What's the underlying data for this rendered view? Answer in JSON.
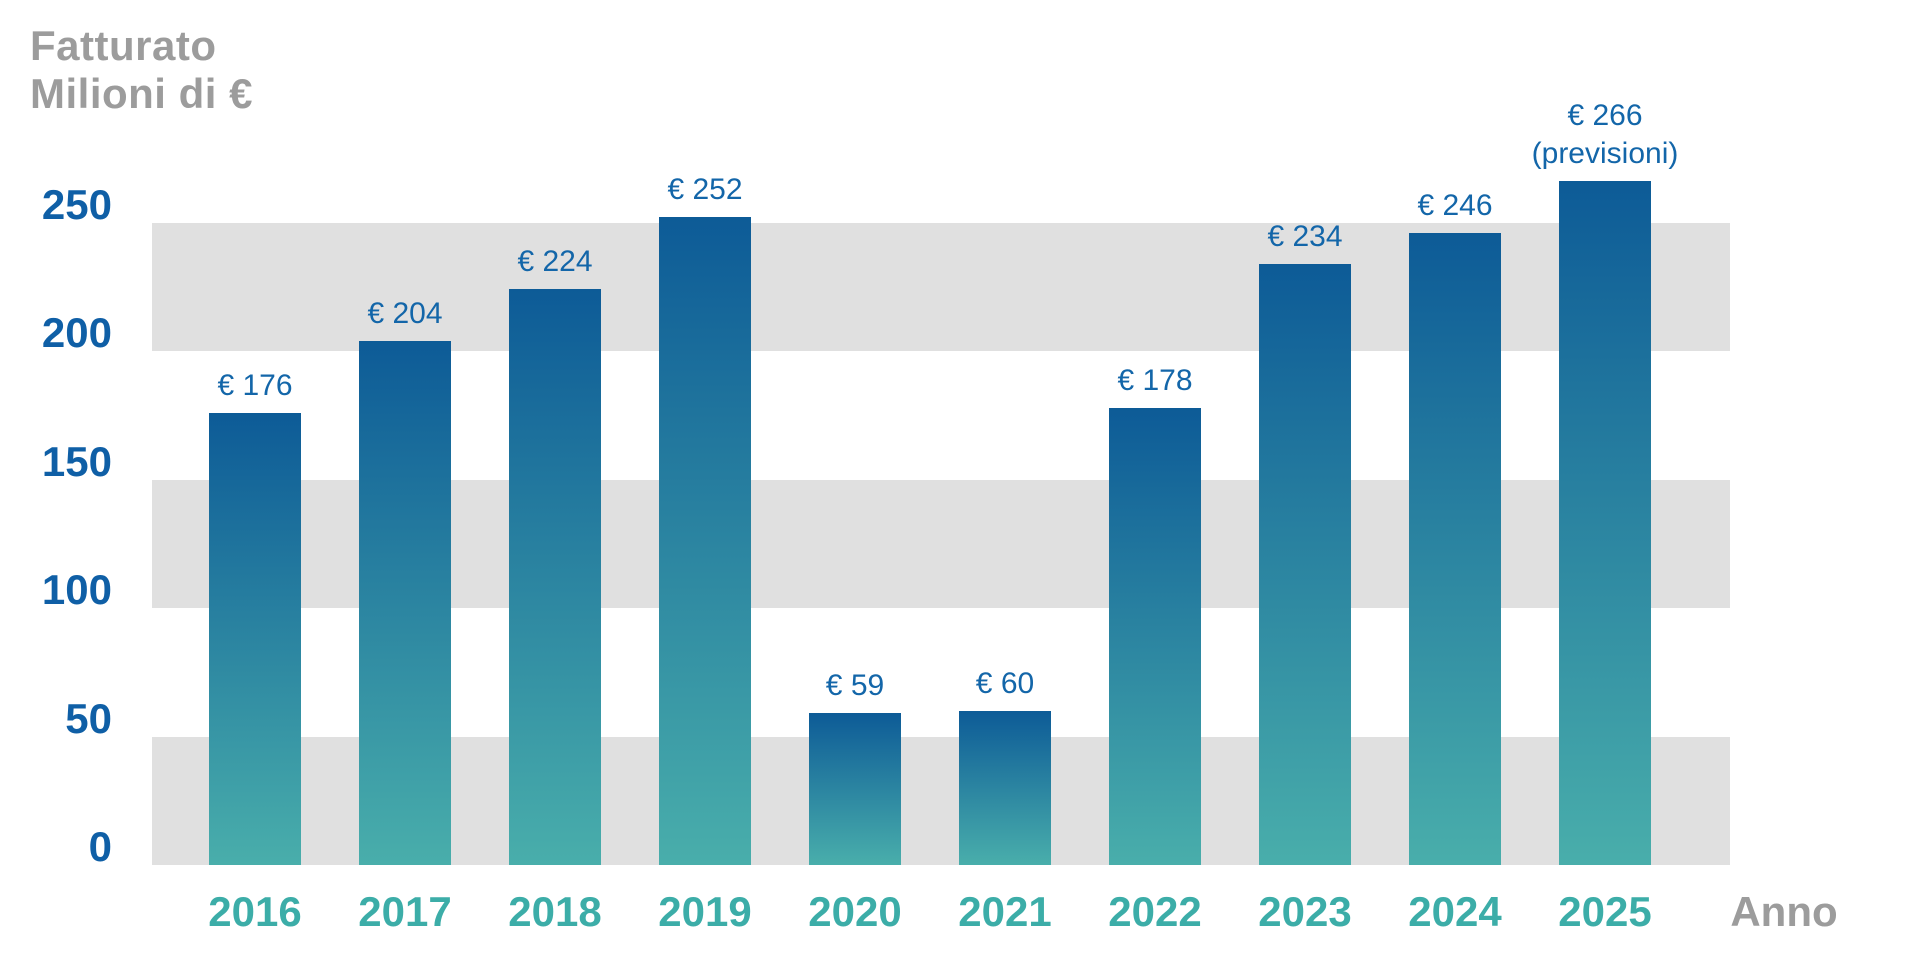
{
  "page": {
    "background": "#ffffff"
  },
  "chart_data": {
    "type": "bar",
    "title_lines": [
      "Fatturato",
      "Milioni di €"
    ],
    "xlabel": "Anno",
    "categories": [
      "2016",
      "2017",
      "2018",
      "2019",
      "2020",
      "2021",
      "2022",
      "2023",
      "2024",
      "2025"
    ],
    "values": [
      176,
      204,
      224,
      252,
      59,
      60,
      178,
      234,
      246,
      266
    ],
    "bar_labels": [
      "€ 176",
      "€ 204",
      "€ 224",
      "€ 252",
      "€ 59",
      "€ 60",
      "€ 178",
      "€ 234",
      "€ 246",
      "€ 266"
    ],
    "bar_sublabels": [
      "",
      "",
      "",
      "",
      "",
      "",
      "",
      "",
      "",
      "(previsioni)"
    ],
    "yticks": [
      0,
      50,
      100,
      150,
      200,
      250
    ],
    "ylim": [
      0,
      270
    ],
    "grid_bands": [
      [
        0,
        50
      ],
      [
        100,
        150
      ],
      [
        200,
        250
      ]
    ],
    "legend": "none",
    "grid": "horizontal-bands",
    "colors": {
      "bar_gradient_top": "#0d5b97",
      "bar_gradient_bottom": "#49aeab",
      "band_gray": "#e0e0e0",
      "axis_label_blue": "#0f5fa6",
      "value_label_blue": "#1366a9",
      "year_label_teal": "#3cada8",
      "muted_gray_text": "#9c9c9c",
      "background": "#ffffff"
    }
  }
}
